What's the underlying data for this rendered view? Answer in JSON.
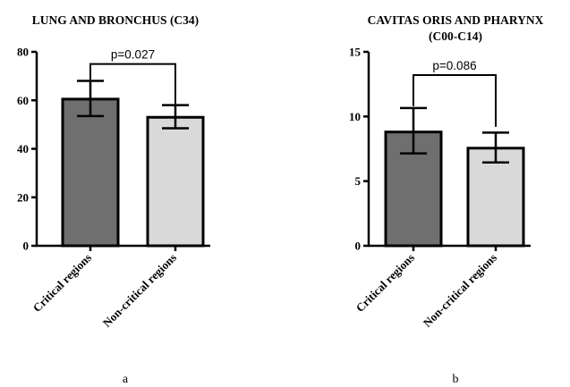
{
  "chart_data": [
    {
      "type": "bar",
      "title": "LUNG AND BRONCHUS (C34)",
      "title_lines": [
        "LUNG AND BRONCHUS (C34)"
      ],
      "panel_label": "a",
      "categories": [
        "Critical regions",
        "Non-critical regions"
      ],
      "values": [
        60.5,
        53
      ],
      "error_upper": [
        68,
        58
      ],
      "error_lower": [
        53.5,
        48.5
      ],
      "ylim": [
        0,
        80
      ],
      "yticks": [
        0,
        20,
        40,
        60,
        80
      ],
      "yticklabels": [
        "0",
        "20",
        "40",
        "60",
        "80"
      ],
      "xlabel": "",
      "ylabel": "",
      "bar_colors": [
        "#6f6f6f",
        "#d9d9d9"
      ],
      "significance": {
        "text": "p=0.027",
        "level": 75,
        "left_base": 68.5,
        "right_base": 58.5
      }
    },
    {
      "type": "bar",
      "title": "CAVITAS ORIS AND PHARYNX (C00-C14)",
      "title_lines": [
        "CAVITAS ORIS AND PHARYNX",
        "(C00-C14)"
      ],
      "panel_label": "b",
      "categories": [
        "Critical regions",
        "Non-critical regions"
      ],
      "values": [
        8.8,
        7.55
      ],
      "error_upper": [
        10.65,
        8.75
      ],
      "error_lower": [
        7.15,
        6.45
      ],
      "ylim": [
        0,
        15
      ],
      "yticks": [
        0,
        5,
        10,
        15
      ],
      "yticklabels": [
        "0",
        "5",
        "10",
        "15"
      ],
      "xlabel": "",
      "ylabel": "",
      "bar_colors": [
        "#6f6f6f",
        "#d9d9d9"
      ],
      "significance": {
        "text": "p=0.086",
        "level": 13.2,
        "left_base": 10.8,
        "right_base": 9.2
      }
    }
  ]
}
